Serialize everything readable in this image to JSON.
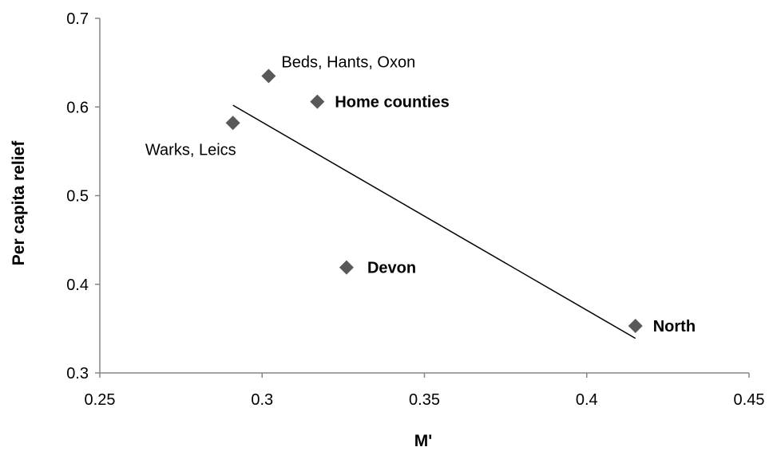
{
  "chart_data": {
    "type": "scatter",
    "title": "",
    "xlabel": "M'",
    "ylabel": "Per capita relief",
    "xlim": [
      0.25,
      0.45
    ],
    "ylim": [
      0.3,
      0.7
    ],
    "x_ticks": [
      "0.25",
      "0.3",
      "0.35",
      "0.4",
      "0.45"
    ],
    "y_ticks": [
      "0.3",
      "0.4",
      "0.5",
      "0.6",
      "0.7"
    ],
    "grid": false,
    "legend": "none",
    "marker": "diamond",
    "marker_color": "#595959",
    "trendline_color": "#000000",
    "points": [
      {
        "label": "Beds, Hants, Oxon",
        "x": 0.302,
        "y": 0.635
      },
      {
        "label": "Home counties",
        "x": 0.317,
        "y": 0.606
      },
      {
        "label": "Warks, Leics",
        "x": 0.291,
        "y": 0.582
      },
      {
        "label": "Devon",
        "x": 0.326,
        "y": 0.419
      },
      {
        "label": "North",
        "x": 0.415,
        "y": 0.353
      }
    ],
    "trendline": {
      "type": "linear",
      "start": {
        "x": 0.291,
        "y": 0.602
      },
      "end": {
        "x": 0.415,
        "y": 0.339
      }
    }
  }
}
